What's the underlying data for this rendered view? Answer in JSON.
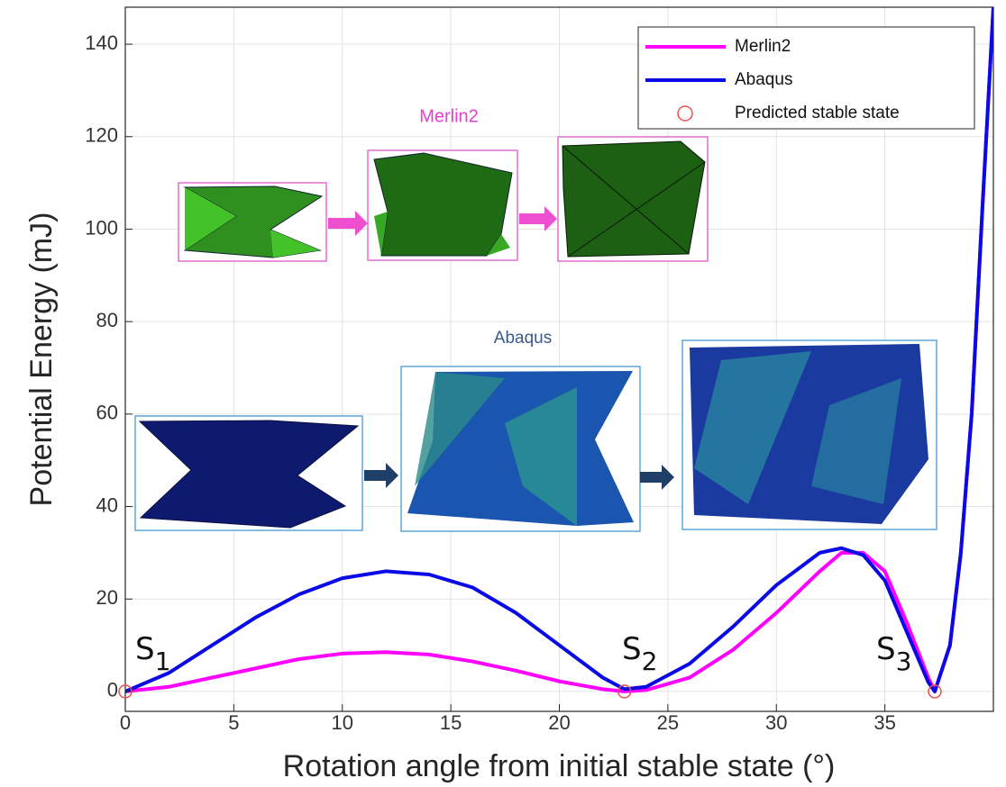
{
  "chart_data": {
    "type": "line",
    "xlabel": "Rotation angle from initial stable state (°)",
    "ylabel": "Potential Energy (mJ)",
    "x": [
      0,
      2,
      4,
      6,
      8,
      10,
      12,
      14,
      16,
      18,
      20,
      22,
      23,
      24,
      26,
      28,
      30,
      32,
      33,
      34,
      35,
      36,
      37,
      37.3,
      38,
      38.5,
      39,
      39.5,
      40
    ],
    "series": [
      {
        "name": "Merlin2",
        "color": "#ff00ff",
        "values": [
          0,
          1,
          3,
          5,
          7,
          8.2,
          8.5,
          8,
          6.5,
          4.5,
          2.2,
          0.5,
          0,
          0.3,
          3,
          9,
          17,
          26,
          30,
          30,
          26,
          15,
          3,
          0,
          10,
          30,
          60,
          105,
          148
        ]
      },
      {
        "name": "Abaqus",
        "color": "#0a0ae6",
        "values": [
          0,
          4,
          10,
          16,
          21,
          24.5,
          26,
          25.3,
          22.5,
          17,
          10,
          3,
          0.5,
          1,
          6,
          14,
          23,
          30,
          31,
          29.5,
          24,
          13,
          2,
          0,
          10,
          30,
          60,
          105,
          148
        ]
      },
      {
        "name": "Predicted stable state",
        "color": "#e8534f",
        "marker": "circle",
        "line": false,
        "values": [
          0,
          null,
          null,
          null,
          null,
          null,
          null,
          null,
          null,
          null,
          null,
          null,
          0,
          null,
          null,
          null,
          null,
          null,
          null,
          null,
          null,
          null,
          null,
          0,
          null,
          null,
          null,
          null,
          null
        ]
      }
    ],
    "xlim": [
      0,
      40
    ],
    "ylim": [
      -4.3,
      148
    ],
    "xticks": [
      0,
      5,
      10,
      15,
      20,
      25,
      30,
      35
    ],
    "yticks": [
      0,
      20,
      40,
      60,
      80,
      100,
      120,
      140
    ],
    "grid": true,
    "legend": "top right",
    "annotations": [
      {
        "text": "S",
        "subscript": "1"
      },
      {
        "text": "S",
        "subscript": "2"
      },
      {
        "text": "S",
        "subscript": "3"
      }
    ],
    "inset_labels": [
      "Merlin2",
      "Abaqus"
    ]
  }
}
